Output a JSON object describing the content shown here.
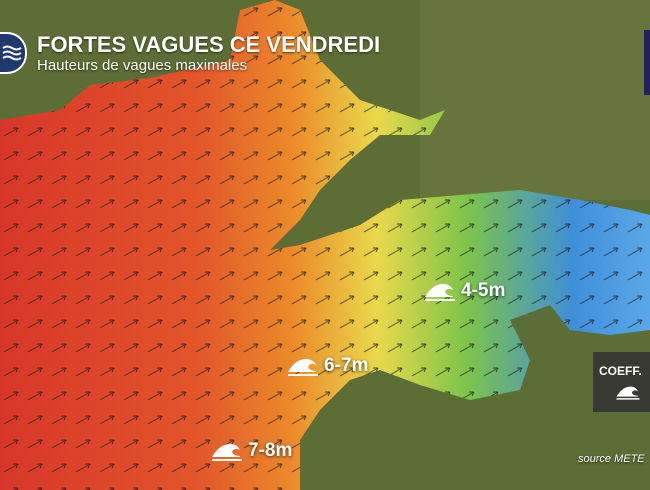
{
  "header": {
    "title": "FORTES VAGUES CE VENDREDI",
    "subtitle": "Hauteurs de vagues maximales",
    "icon": "waves-icon"
  },
  "labels": [
    {
      "text": "4-5m",
      "icon": "wave-icon"
    },
    {
      "text": "6-7m",
      "icon": "wave-icon"
    },
    {
      "text": "7-8m",
      "icon": "wave-icon"
    }
  ],
  "coeff_panel": {
    "label": "COEFF.",
    "icon": "wave-icon"
  },
  "source": "source METE",
  "colors": {
    "high": "#d8362a",
    "mid": "#ec7a2a",
    "low_mid": "#e9d94a",
    "low": "#7cc44a",
    "lowest": "#3f8fd8",
    "land": "#5a6b34"
  }
}
